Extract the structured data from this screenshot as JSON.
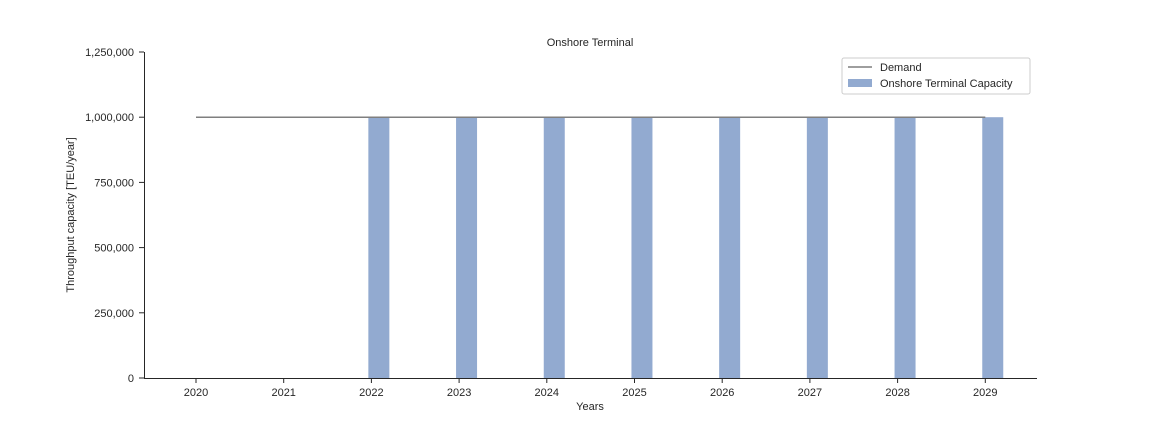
{
  "chart_data": {
    "type": "bar",
    "title": "Onshore Terminal",
    "xlabel": "Years",
    "ylabel": "Throughput capacity [TEU/year]",
    "categories": [
      "2020",
      "2021",
      "2022",
      "2023",
      "2024",
      "2025",
      "2026",
      "2027",
      "2028",
      "2029"
    ],
    "ylim": [
      0,
      1250000
    ],
    "yticks": [
      0,
      250000,
      500000,
      750000,
      1000000,
      1250000
    ],
    "ytick_labels": [
      "0",
      "250,000",
      "500,000",
      "750,000",
      "1,000,000",
      "1,250,000"
    ],
    "grid": false,
    "legend_position": "top-right",
    "series": [
      {
        "name": "Onshore Terminal Capacity",
        "kind": "bar",
        "color": "#92aad0",
        "values": [
          0,
          0,
          1000000,
          1000000,
          1000000,
          1000000,
          1000000,
          1000000,
          1000000,
          1000000
        ]
      },
      {
        "name": "Demand",
        "kind": "line",
        "color": "#7f7f7f",
        "values": [
          1000000,
          1000000,
          1000000,
          1000000,
          1000000,
          1000000,
          1000000,
          1000000,
          1000000,
          1000000
        ]
      }
    ]
  }
}
